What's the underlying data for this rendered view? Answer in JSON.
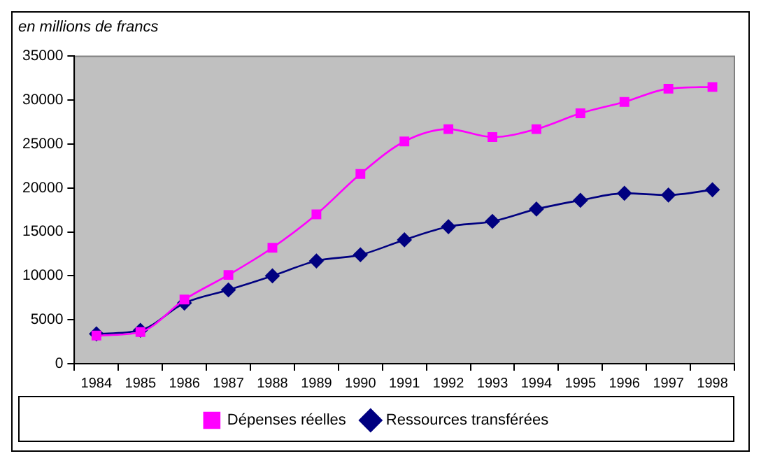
{
  "chart_data": {
    "type": "line",
    "title": "en millions de francs",
    "categories": [
      "1984",
      "1985",
      "1986",
      "1987",
      "1988",
      "1989",
      "1990",
      "1991",
      "1992",
      "1993",
      "1994",
      "1995",
      "1996",
      "1997",
      "1998"
    ],
    "series": [
      {
        "name": "Ressources transférées",
        "color": "#000080",
        "marker": "diamond",
        "values": [
          3400,
          3800,
          6900,
          8400,
          10000,
          11700,
          12400,
          14100,
          15600,
          16200,
          17600,
          18600,
          19400,
          19200,
          19800
        ]
      },
      {
        "name": "Dépenses réelles",
        "color": "#ff00ff",
        "marker": "square",
        "values": [
          3200,
          3600,
          7300,
          10100,
          13200,
          17000,
          21600,
          25300,
          26700,
          25800,
          26700,
          28500,
          29800,
          31300,
          31500
        ]
      }
    ],
    "ylim": [
      0,
      35000
    ],
    "yticks": [
      0,
      5000,
      10000,
      15000,
      20000,
      25000,
      30000,
      35000
    ],
    "grid": false,
    "legend": "bottom"
  }
}
